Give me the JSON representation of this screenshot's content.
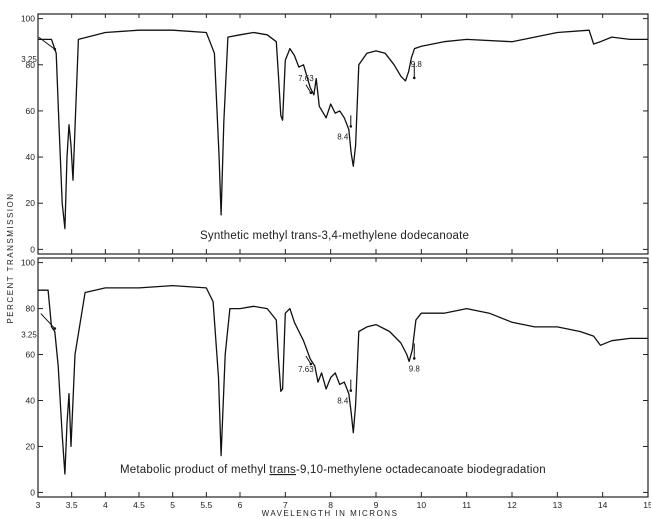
{
  "chart_data": [
    {
      "type": "line",
      "title": "Synthetic methyl trans-3,4-methylene dodecanoate",
      "title_underlined_part": "",
      "xlabel": "WAVELENGTH IN MICRONS",
      "ylabel": "PERCENT TRANSMISSION",
      "xlim": [
        3,
        15
      ],
      "ylim": [
        -2,
        102
      ],
      "x_tick_labels": [
        "3",
        "3.5",
        "4",
        "4.5",
        "5",
        "5.5",
        "6",
        "7",
        "8",
        "9",
        "10",
        "11",
        "12",
        "13",
        "14",
        "15"
      ],
      "y_tick_labels": [
        "0",
        "20",
        "40",
        "60",
        "80",
        "100"
      ],
      "grid": false,
      "series": [
        {
          "x": [
            3.0,
            3.2,
            3.27,
            3.31,
            3.36,
            3.4,
            3.43,
            3.46,
            3.49,
            3.52,
            3.6,
            4.0,
            4.5,
            5.0,
            5.5,
            5.62,
            5.69,
            5.72,
            5.76,
            5.82,
            6.0,
            6.3,
            6.6,
            6.8,
            6.85,
            6.9,
            6.94,
            7.0,
            7.1,
            7.2,
            7.3,
            7.4,
            7.55,
            7.63,
            7.68,
            7.75,
            7.9,
            8.0,
            8.1,
            8.2,
            8.3,
            8.4,
            8.45,
            8.5,
            8.55,
            8.62,
            8.8,
            9.0,
            9.2,
            9.4,
            9.55,
            9.65,
            9.72,
            9.78,
            9.85,
            10.0,
            10.5,
            11.0,
            12.0,
            13.0,
            13.7,
            13.8,
            13.95,
            14.2,
            14.6,
            15.0
          ],
          "y": [
            91,
            91,
            85,
            55,
            20,
            9,
            40,
            54,
            45,
            30,
            91,
            94,
            95,
            95,
            94,
            85,
            40,
            15,
            55,
            92,
            93,
            94,
            93,
            90,
            75,
            58,
            56,
            82,
            87,
            84,
            79,
            80,
            70,
            67,
            74,
            62,
            57,
            63,
            59,
            60,
            57,
            52,
            42,
            36,
            45,
            80,
            85,
            86,
            85,
            80,
            75,
            73,
            77,
            83,
            87,
            88,
            90,
            91,
            90,
            94,
            95,
            89,
            90,
            92,
            91,
            91
          ]
        }
      ],
      "annotations": [
        {
          "text": "3.25",
          "x": 3.25,
          "y": 85
        },
        {
          "text": "7.63",
          "x": 7.63,
          "y": 67
        },
        {
          "text": "8.4",
          "x": 8.4,
          "y": 52
        },
        {
          "text": "9.8",
          "x": 9.8,
          "y": 73
        }
      ]
    },
    {
      "type": "line",
      "title": "Metabolic product of methyl trans-9,10-methylene octadecanoate biodegradation",
      "title_underlined_part": "trans",
      "xlabel": "WAVELENGTH IN MICRONS",
      "ylabel": "PERCENT TRANSMISSION",
      "xlim": [
        3,
        15
      ],
      "ylim": [
        -2,
        102
      ],
      "x_tick_labels": [
        "3",
        "3.5",
        "4",
        "4.5",
        "5",
        "5.5",
        "6",
        "7",
        "8",
        "9",
        "10",
        "11",
        "12",
        "13",
        "14",
        "15"
      ],
      "y_tick_labels": [
        "0",
        "20",
        "40",
        "60",
        "80",
        "100"
      ],
      "grid": false,
      "series": [
        {
          "x": [
            3.0,
            3.15,
            3.2,
            3.25,
            3.3,
            3.36,
            3.4,
            3.43,
            3.46,
            3.49,
            3.55,
            3.7,
            4.0,
            4.5,
            5.0,
            5.5,
            5.6,
            5.68,
            5.72,
            5.78,
            5.85,
            6.0,
            6.3,
            6.6,
            6.8,
            6.85,
            6.9,
            6.94,
            7.0,
            7.1,
            7.2,
            7.3,
            7.4,
            7.55,
            7.65,
            7.72,
            7.8,
            7.9,
            8.0,
            8.1,
            8.2,
            8.3,
            8.4,
            8.45,
            8.5,
            8.55,
            8.62,
            8.8,
            9.0,
            9.3,
            9.55,
            9.68,
            9.73,
            9.8,
            9.88,
            10.0,
            10.5,
            11.0,
            11.5,
            12.0,
            12.5,
            13.0,
            13.5,
            13.8,
            13.95,
            14.2,
            14.6,
            15.0
          ],
          "y": [
            88,
            88,
            72,
            70,
            55,
            25,
            8,
            30,
            43,
            20,
            60,
            87,
            89,
            89,
            90,
            89,
            83,
            50,
            16,
            60,
            80,
            80,
            81,
            80,
            75,
            58,
            44,
            45,
            78,
            80,
            74,
            70,
            66,
            58,
            55,
            48,
            52,
            45,
            50,
            52,
            47,
            48,
            43,
            35,
            26,
            38,
            70,
            72,
            73,
            70,
            65,
            60,
            57,
            62,
            75,
            78,
            78,
            80,
            78,
            74,
            72,
            72,
            70,
            68,
            64,
            66,
            67,
            67
          ]
        }
      ],
      "annotations": [
        {
          "text": "3.25",
          "x": 3.25,
          "y": 70
        },
        {
          "text": "7.63",
          "x": 7.63,
          "y": 55
        },
        {
          "text": "8.4",
          "x": 8.4,
          "y": 43
        },
        {
          "text": "9.8",
          "x": 9.8,
          "y": 57
        }
      ]
    }
  ]
}
